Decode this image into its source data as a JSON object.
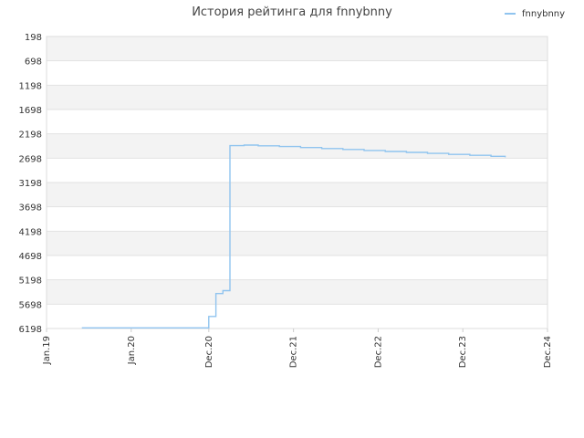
{
  "chart_data": {
    "type": "line",
    "title": "История рейтинга для fnnybnny",
    "xlabel": "",
    "ylabel": "",
    "y_inverted": true,
    "ylim": [
      198,
      6198
    ],
    "yticks": [
      198,
      698,
      1198,
      1698,
      2198,
      2698,
      3198,
      3698,
      4198,
      4698,
      5198,
      5698,
      6198
    ],
    "xlim": [
      "2019-01",
      "2024-12"
    ],
    "xticks": [
      {
        "label": "Jan.19",
        "date": "2019-01"
      },
      {
        "label": "Jan.20",
        "date": "2020-01"
      },
      {
        "label": "Dec.20",
        "date": "2020-12"
      },
      {
        "label": "Dec.21",
        "date": "2021-12"
      },
      {
        "label": "Dec.22",
        "date": "2022-12"
      },
      {
        "label": "Dec.23",
        "date": "2023-12"
      },
      {
        "label": "Dec.24",
        "date": "2024-12"
      }
    ],
    "grid": true,
    "legend_position": "top-right",
    "series": [
      {
        "name": "fnnybnny",
        "color": "#90c4ef",
        "points": [
          {
            "x": "2019-06",
            "y": 6185
          },
          {
            "x": "2020-12",
            "y": 6185
          },
          {
            "x": "2020-12",
            "y": 6140
          },
          {
            "x": "2020-12",
            "y": 5950
          },
          {
            "x": "2021-01",
            "y": 5950
          },
          {
            "x": "2021-01",
            "y": 5480
          },
          {
            "x": "2021-02",
            "y": 5420
          },
          {
            "x": "2021-03",
            "y": 5370
          },
          {
            "x": "2021-03",
            "y": 2440
          },
          {
            "x": "2021-05",
            "y": 2430
          },
          {
            "x": "2021-07",
            "y": 2445
          },
          {
            "x": "2021-10",
            "y": 2460
          },
          {
            "x": "2022-01",
            "y": 2480
          },
          {
            "x": "2022-04",
            "y": 2500
          },
          {
            "x": "2022-07",
            "y": 2520
          },
          {
            "x": "2022-10",
            "y": 2540
          },
          {
            "x": "2023-01",
            "y": 2560
          },
          {
            "x": "2023-04",
            "y": 2580
          },
          {
            "x": "2023-07",
            "y": 2600
          },
          {
            "x": "2023-10",
            "y": 2620
          },
          {
            "x": "2024-01",
            "y": 2640
          },
          {
            "x": "2024-04",
            "y": 2660
          },
          {
            "x": "2024-06",
            "y": 2680
          }
        ]
      }
    ]
  }
}
